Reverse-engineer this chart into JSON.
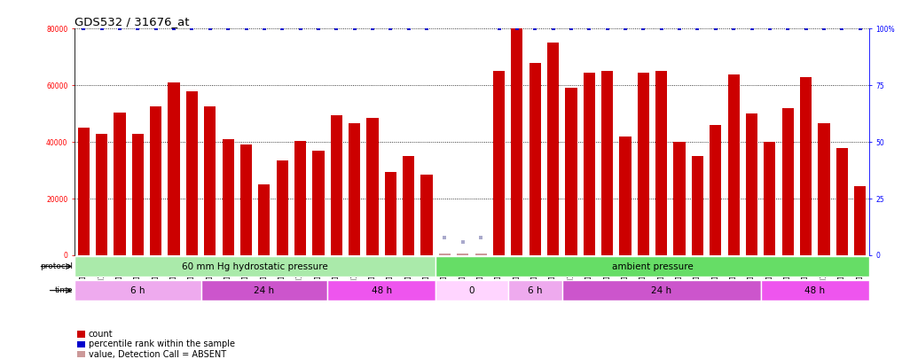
{
  "title": "GDS532 / 31676_at",
  "categories": [
    "GSM11387",
    "GSM11388",
    "GSM11389",
    "GSM11390",
    "GSM11391",
    "GSM11392",
    "GSM11393",
    "GSM11402",
    "GSM11403",
    "GSM11405",
    "GSM11407",
    "GSM11409",
    "GSM11411",
    "GSM11413",
    "GSM11415",
    "GSM11422",
    "GSM11423",
    "GSM11424",
    "GSM11425",
    "GSM11426",
    "GSM11350",
    "GSM11351",
    "GSM11366",
    "GSM11369",
    "GSM11372",
    "GSM11377",
    "GSM11378",
    "GSM11382",
    "GSM11384",
    "GSM11385",
    "GSM11386",
    "GSM11394",
    "GSM11395",
    "GSM11396",
    "GSM11397",
    "GSM11398",
    "GSM11399",
    "GSM11400",
    "GSM11401",
    "GSM11416",
    "GSM11417",
    "GSM11418",
    "GSM11419",
    "GSM11420"
  ],
  "bar_values": [
    45000,
    43000,
    50500,
    43000,
    52500,
    61000,
    58000,
    52500,
    41000,
    39000,
    25000,
    33500,
    40500,
    37000,
    49500,
    46500,
    48500,
    29500,
    35000,
    28500,
    500,
    500,
    500,
    65000,
    83000,
    68000,
    75000,
    59000,
    64500,
    65000,
    42000,
    64500,
    65000,
    40000,
    35000,
    46000,
    64000,
    50000,
    40000,
    52000,
    63000,
    46500,
    38000,
    24500
  ],
  "absent_indices": [
    20,
    21,
    22
  ],
  "absent_rank_values": [
    8,
    6,
    8
  ],
  "bar_color": "#cc0000",
  "absent_bar_color": "#cc9999",
  "percentile_color": "#0000cc",
  "absent_rank_color": "#aaaacc",
  "ylim_left": [
    0,
    80000
  ],
  "ylim_right": [
    0,
    100
  ],
  "yticks_left": [
    0,
    20000,
    40000,
    60000,
    80000
  ],
  "ytick_labels_left": [
    "0",
    "20000",
    "40000",
    "60000",
    "80000"
  ],
  "yticks_right": [
    0,
    25,
    50,
    75,
    100
  ],
  "ytick_labels_right": [
    "0",
    "25",
    "50",
    "75",
    "100%"
  ],
  "protocol_bands": [
    {
      "label": "60 mm Hg hydrostatic pressure",
      "start": 0,
      "end": 19,
      "color": "#aaeaaa"
    },
    {
      "label": "ambient pressure",
      "start": 20,
      "end": 43,
      "color": "#66dd66"
    }
  ],
  "time_bands": [
    {
      "label": "6 h",
      "start": 0,
      "end": 6,
      "color": "#eeaaee"
    },
    {
      "label": "24 h",
      "start": 7,
      "end": 13,
      "color": "#cc55cc"
    },
    {
      "label": "48 h",
      "start": 14,
      "end": 19,
      "color": "#ee55ee"
    },
    {
      "label": "0",
      "start": 20,
      "end": 23,
      "color": "#ffd5ff"
    },
    {
      "label": "6 h",
      "start": 24,
      "end": 26,
      "color": "#eeaaee"
    },
    {
      "label": "24 h",
      "start": 27,
      "end": 37,
      "color": "#cc55cc"
    },
    {
      "label": "48 h",
      "start": 38,
      "end": 43,
      "color": "#ee55ee"
    }
  ],
  "legend_items": [
    {
      "color": "#cc0000",
      "label": "count"
    },
    {
      "color": "#0000cc",
      "label": "percentile rank within the sample"
    },
    {
      "color": "#cc9999",
      "label": "value, Detection Call = ABSENT"
    },
    {
      "color": "#aaaacc",
      "label": "rank, Detection Call = ABSENT"
    }
  ],
  "background_color": "#ffffff",
  "plot_bg_color": "#ffffff",
  "title_fontsize": 9.5,
  "tick_fontsize": 5.5,
  "band_fontsize": 7.5,
  "legend_fontsize": 7
}
